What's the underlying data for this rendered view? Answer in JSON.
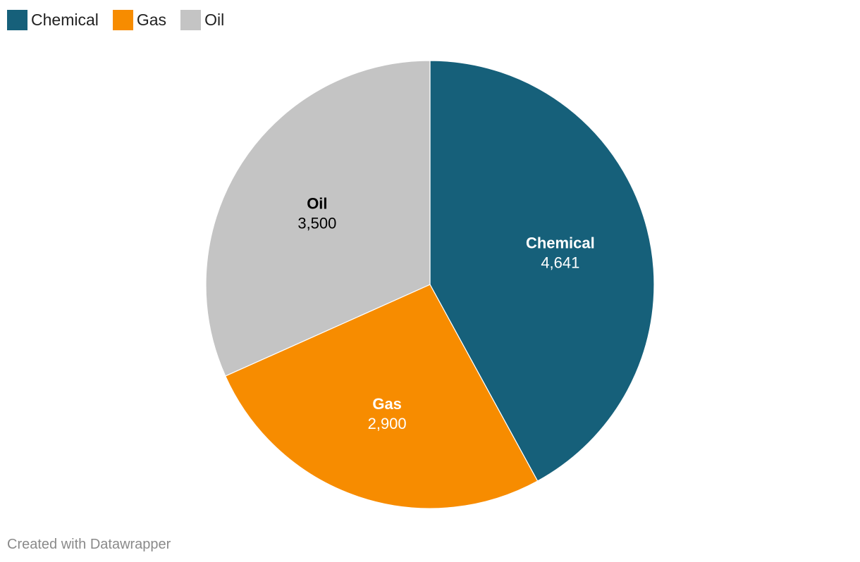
{
  "legend": {
    "items": [
      {
        "label": "Chemical",
        "color": "#16607a"
      },
      {
        "label": "Gas",
        "color": "#f78c00"
      },
      {
        "label": "Oil",
        "color": "#c4c4c4"
      }
    ]
  },
  "chart_data": {
    "type": "pie",
    "slices": [
      {
        "label": "Chemical",
        "value": 4641,
        "value_label": "4,641",
        "color": "#16607a",
        "text_color": "#ffffff"
      },
      {
        "label": "Gas",
        "value": 2900,
        "value_label": "2,900",
        "color": "#f78c00",
        "text_color": "#ffffff"
      },
      {
        "label": "Oil",
        "value": 3500,
        "value_label": "3,500",
        "color": "#c4c4c4",
        "text_color": "#000000"
      }
    ],
    "start": "top",
    "direction": "clockwise",
    "legend_position": "top-left"
  },
  "footer": {
    "credit": "Created with Datawrapper"
  }
}
